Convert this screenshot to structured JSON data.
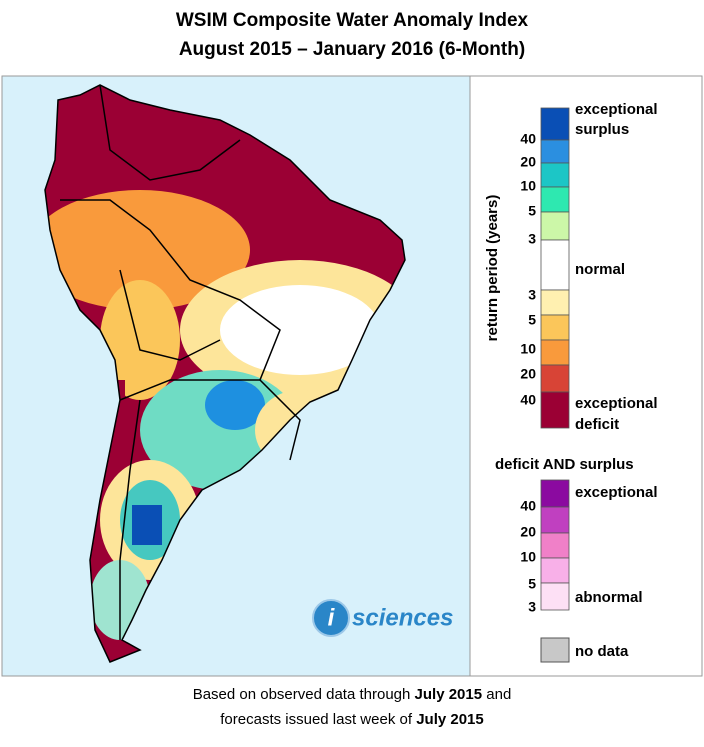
{
  "header": {
    "title": "WSIM Composite Water Anomaly Index",
    "subtitle": "August 2015 – January 2016 (6-Month)"
  },
  "legend": {
    "axis_label": "return period (years)",
    "surplus_label": [
      "exceptional",
      "surplus"
    ],
    "surplus_ticks": [
      "40",
      "20",
      "10",
      "5",
      "3"
    ],
    "normal_label": "normal",
    "deficit_ticks": [
      "3",
      "5",
      "10",
      "20",
      "40"
    ],
    "deficit_label": [
      "exceptional",
      "deficit"
    ],
    "both_title": "deficit AND surplus",
    "both_top_label": "exceptional",
    "both_ticks": [
      "40",
      "20",
      "10",
      "5",
      "3"
    ],
    "both_bottom_label": "abnormal",
    "no_data_label": "no data"
  },
  "logo": {
    "letter": "i",
    "text": "sciences"
  },
  "footer": {
    "line1": {
      "before": "Based on observed data through",
      "bold": "July 2015",
      "after": "and"
    },
    "line2": {
      "before": "forecasts issued last week of",
      "bold": "July 2015"
    }
  }
}
